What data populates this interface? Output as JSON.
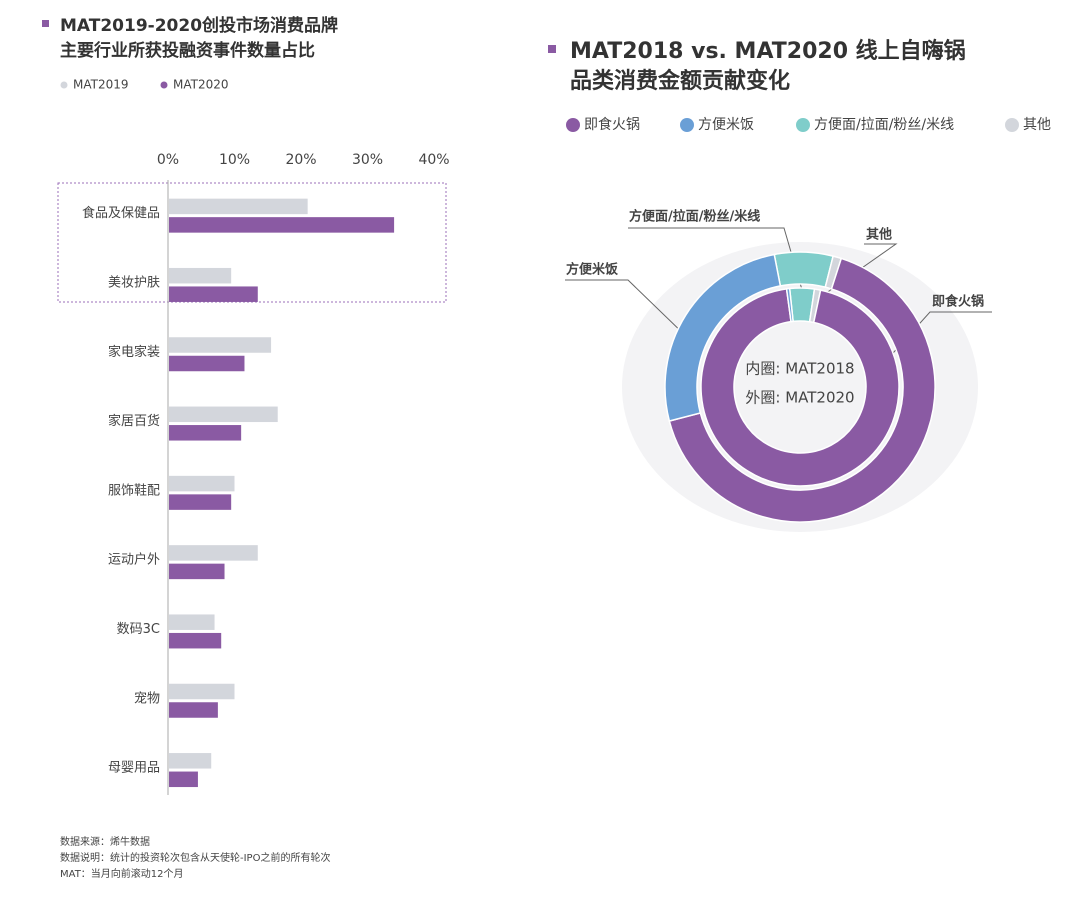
{
  "chart_data": [
    {
      "type": "hbar",
      "title": [
        "MAT2019-2020创投市场消费品牌",
        "主要行业所获投融资事件数量占比"
      ],
      "categories": [
        "食品及保健品",
        "美妆护肤",
        "家电家装",
        "家居百货",
        "服饰鞋配",
        "运动户外",
        "数码3C",
        "宠物",
        "母婴用品"
      ],
      "series": [
        {
          "name": "MAT2019",
          "color": "#d3d6dc",
          "values": [
            21,
            9.5,
            15.5,
            16.5,
            10,
            13.5,
            7,
            10,
            6.5
          ]
        },
        {
          "name": "MAT2020",
          "color": "#8a5aa3",
          "values": [
            34,
            13.5,
            11.5,
            11,
            9.5,
            8.5,
            8,
            7.5,
            4.5
          ]
        }
      ],
      "xlim": [
        0,
        40
      ],
      "xticks": [
        {
          "value": 0,
          "label": "0%"
        },
        {
          "value": 10,
          "label": "10%"
        },
        {
          "value": 20,
          "label": "20%"
        },
        {
          "value": 30,
          "label": "30%"
        },
        {
          "value": 40,
          "label": "40%"
        }
      ]
    },
    {
      "type": "donut",
      "title": [
        "MAT2018 vs. MAT2020 线上自嗨锅",
        "品类消费金额贡献变化"
      ],
      "categories": [
        "即食火锅",
        "方便米饭",
        "方便面/拉面/粉丝/米线",
        "其他"
      ],
      "colors": [
        "#8a5aa3",
        "#6a9fd6",
        "#7fcdca",
        "#d3d6dc"
      ],
      "rings": [
        {
          "label": "内圈: MAT2018",
          "values": [
            94.5,
            0.5,
            4,
            1
          ]
        },
        {
          "label": "外圈: MAT2020",
          "values": [
            66,
            26,
            7,
            1
          ]
        }
      ]
    }
  ],
  "notes": [
    "数据来源：烯牛数据",
    "数据说明：统计的投资轮次包含从天使轮-IPO之前的所有轮次",
    "MAT：当月向前滚动12个月"
  ]
}
